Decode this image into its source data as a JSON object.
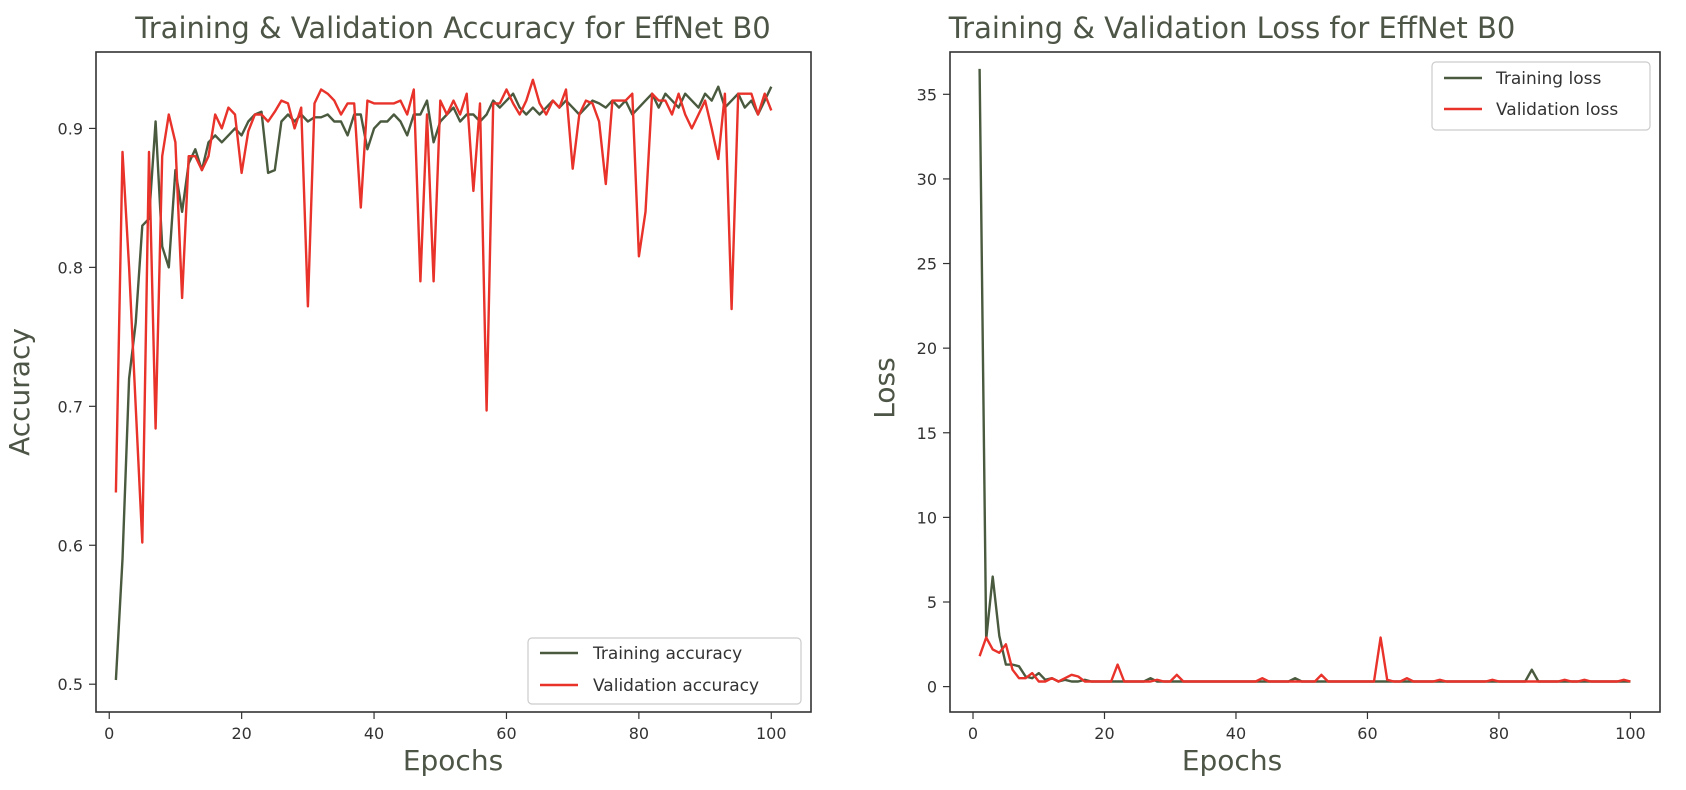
{
  "chart_data": [
    {
      "type": "line",
      "title": "Training & Validation Accuracy for EffNet B0",
      "xlabel": "Epochs",
      "ylabel": "Accuracy",
      "xlim": [
        -2,
        106
      ],
      "ylim": [
        0.48,
        0.955
      ],
      "xticks": [
        0,
        20,
        40,
        60,
        80,
        100
      ],
      "yticks": [
        0.5,
        0.6,
        0.7,
        0.8,
        0.9
      ],
      "xtick_labels": [
        "0",
        "20",
        "40",
        "60",
        "80",
        "100"
      ],
      "ytick_labels": [
        "0.5",
        "0.6",
        "0.7",
        "0.8",
        "0.9"
      ],
      "legend_position": "lower-right",
      "x": [
        1,
        2,
        3,
        4,
        5,
        6,
        7,
        8,
        9,
        10,
        11,
        12,
        13,
        14,
        15,
        16,
        17,
        18,
        19,
        20,
        21,
        22,
        23,
        24,
        25,
        26,
        27,
        28,
        29,
        30,
        31,
        32,
        33,
        34,
        35,
        36,
        37,
        38,
        39,
        40,
        41,
        42,
        43,
        44,
        45,
        46,
        47,
        48,
        49,
        50,
        51,
        52,
        53,
        54,
        55,
        56,
        57,
        58,
        59,
        60,
        61,
        62,
        63,
        64,
        65,
        66,
        67,
        68,
        69,
        70,
        71,
        72,
        73,
        74,
        75,
        76,
        77,
        78,
        79,
        80,
        81,
        82,
        83,
        84,
        85,
        86,
        87,
        88,
        89,
        90,
        91,
        92,
        93,
        94,
        95,
        96,
        97,
        98,
        99,
        100
      ],
      "series": [
        {
          "name": "Training accuracy",
          "color": "#4a5a3e",
          "values": [
            0.503,
            0.59,
            0.72,
            0.76,
            0.83,
            0.835,
            0.905,
            0.815,
            0.8,
            0.87,
            0.84,
            0.875,
            0.885,
            0.87,
            0.89,
            0.895,
            0.89,
            0.895,
            0.9,
            0.895,
            0.905,
            0.91,
            0.912,
            0.868,
            0.87,
            0.905,
            0.91,
            0.905,
            0.91,
            0.905,
            0.908,
            0.908,
            0.91,
            0.905,
            0.905,
            0.895,
            0.91,
            0.91,
            0.885,
            0.9,
            0.905,
            0.905,
            0.91,
            0.905,
            0.895,
            0.91,
            0.91,
            0.92,
            0.89,
            0.905,
            0.91,
            0.915,
            0.905,
            0.91,
            0.91,
            0.905,
            0.91,
            0.92,
            0.915,
            0.92,
            0.925,
            0.915,
            0.91,
            0.915,
            0.91,
            0.915,
            0.92,
            0.915,
            0.92,
            0.915,
            0.91,
            0.915,
            0.92,
            0.918,
            0.915,
            0.92,
            0.915,
            0.92,
            0.91,
            0.915,
            0.92,
            0.925,
            0.915,
            0.925,
            0.92,
            0.915,
            0.925,
            0.92,
            0.915,
            0.925,
            0.92,
            0.93,
            0.915,
            0.92,
            0.925,
            0.915,
            0.92,
            0.91,
            0.92,
            0.93
          ]
        },
        {
          "name": "Validation accuracy",
          "color": "#e8322a",
          "values": [
            0.638,
            0.883,
            0.8,
            0.7,
            0.602,
            0.883,
            0.684,
            0.88,
            0.91,
            0.89,
            0.778,
            0.88,
            0.88,
            0.87,
            0.88,
            0.91,
            0.9,
            0.915,
            0.91,
            0.868,
            0.898,
            0.91,
            0.91,
            0.905,
            0.912,
            0.92,
            0.918,
            0.9,
            0.915,
            0.772,
            0.918,
            0.928,
            0.925,
            0.92,
            0.91,
            0.918,
            0.918,
            0.843,
            0.92,
            0.918,
            0.918,
            0.918,
            0.918,
            0.92,
            0.91,
            0.928,
            0.79,
            0.91,
            0.79,
            0.92,
            0.91,
            0.92,
            0.91,
            0.925,
            0.855,
            0.918,
            0.697,
            0.918,
            0.918,
            0.928,
            0.918,
            0.91,
            0.92,
            0.935,
            0.918,
            0.91,
            0.92,
            0.915,
            0.928,
            0.871,
            0.91,
            0.92,
            0.918,
            0.905,
            0.86,
            0.92,
            0.92,
            0.92,
            0.925,
            0.808,
            0.84,
            0.925,
            0.92,
            0.92,
            0.91,
            0.925,
            0.91,
            0.9,
            0.91,
            0.92,
            0.9,
            0.878,
            0.925,
            0.77,
            0.925,
            0.925,
            0.925,
            0.91,
            0.925,
            0.913
          ]
        }
      ]
    },
    {
      "type": "line",
      "title": "Training & Validation Loss for EffNet B0",
      "xlabel": "Epochs",
      "ylabel": "Loss",
      "xlim": [
        -3.5,
        104.5
      ],
      "ylim": [
        -1.5,
        37.5
      ],
      "xticks": [
        0,
        20,
        40,
        60,
        80,
        100
      ],
      "yticks": [
        0,
        5,
        10,
        15,
        20,
        25,
        30,
        35
      ],
      "xtick_labels": [
        "0",
        "20",
        "40",
        "60",
        "80",
        "100"
      ],
      "ytick_labels": [
        "0",
        "5",
        "10",
        "15",
        "20",
        "25",
        "30",
        "35"
      ],
      "legend_position": "top-right",
      "x": [
        1,
        2,
        3,
        4,
        5,
        6,
        7,
        8,
        9,
        10,
        11,
        12,
        13,
        14,
        15,
        16,
        17,
        18,
        19,
        20,
        21,
        22,
        23,
        24,
        25,
        26,
        27,
        28,
        29,
        30,
        31,
        32,
        33,
        34,
        35,
        36,
        37,
        38,
        39,
        40,
        41,
        42,
        43,
        44,
        45,
        46,
        47,
        48,
        49,
        50,
        51,
        52,
        53,
        54,
        55,
        56,
        57,
        58,
        59,
        60,
        61,
        62,
        63,
        64,
        65,
        66,
        67,
        68,
        69,
        70,
        71,
        72,
        73,
        74,
        75,
        76,
        77,
        78,
        79,
        80,
        81,
        82,
        83,
        84,
        85,
        86,
        87,
        88,
        89,
        90,
        91,
        92,
        93,
        94,
        95,
        96,
        97,
        98,
        99,
        100
      ],
      "series": [
        {
          "name": "Training loss",
          "color": "#4a5a3e",
          "values": [
            36.5,
            2.8,
            6.5,
            3.0,
            1.3,
            1.3,
            1.2,
            0.6,
            0.5,
            0.8,
            0.4,
            0.5,
            0.3,
            0.4,
            0.3,
            0.3,
            0.4,
            0.3,
            0.3,
            0.3,
            0.3,
            0.3,
            0.3,
            0.3,
            0.3,
            0.3,
            0.5,
            0.3,
            0.3,
            0.3,
            0.3,
            0.3,
            0.3,
            0.3,
            0.3,
            0.3,
            0.3,
            0.3,
            0.3,
            0.3,
            0.3,
            0.3,
            0.3,
            0.3,
            0.3,
            0.3,
            0.3,
            0.3,
            0.5,
            0.3,
            0.3,
            0.3,
            0.3,
            0.3,
            0.3,
            0.3,
            0.3,
            0.3,
            0.3,
            0.3,
            0.3,
            0.3,
            0.3,
            0.3,
            0.3,
            0.3,
            0.3,
            0.3,
            0.3,
            0.3,
            0.3,
            0.3,
            0.3,
            0.3,
            0.3,
            0.3,
            0.3,
            0.3,
            0.3,
            0.3,
            0.3,
            0.3,
            0.3,
            0.3,
            1.0,
            0.3,
            0.3,
            0.3,
            0.3,
            0.3,
            0.3,
            0.3,
            0.3,
            0.3,
            0.3,
            0.3,
            0.3,
            0.3,
            0.3,
            0.3
          ]
        },
        {
          "name": "Validation loss",
          "color": "#e8322a",
          "values": [
            1.8,
            2.9,
            2.2,
            2.0,
            2.5,
            1.0,
            0.5,
            0.5,
            0.8,
            0.3,
            0.3,
            0.5,
            0.3,
            0.5,
            0.7,
            0.6,
            0.3,
            0.3,
            0.3,
            0.3,
            0.3,
            1.3,
            0.3,
            0.3,
            0.3,
            0.3,
            0.3,
            0.4,
            0.3,
            0.3,
            0.7,
            0.3,
            0.3,
            0.3,
            0.3,
            0.3,
            0.3,
            0.3,
            0.3,
            0.3,
            0.3,
            0.3,
            0.3,
            0.5,
            0.3,
            0.3,
            0.3,
            0.3,
            0.3,
            0.3,
            0.3,
            0.3,
            0.7,
            0.3,
            0.3,
            0.3,
            0.3,
            0.3,
            0.3,
            0.3,
            0.3,
            2.9,
            0.4,
            0.3,
            0.3,
            0.5,
            0.3,
            0.3,
            0.3,
            0.3,
            0.4,
            0.3,
            0.3,
            0.3,
            0.3,
            0.3,
            0.3,
            0.3,
            0.4,
            0.3,
            0.3,
            0.3,
            0.3,
            0.3,
            0.3,
            0.3,
            0.3,
            0.3,
            0.3,
            0.4,
            0.3,
            0.3,
            0.4,
            0.3,
            0.3,
            0.3,
            0.3,
            0.3,
            0.4,
            0.3
          ]
        }
      ]
    }
  ]
}
